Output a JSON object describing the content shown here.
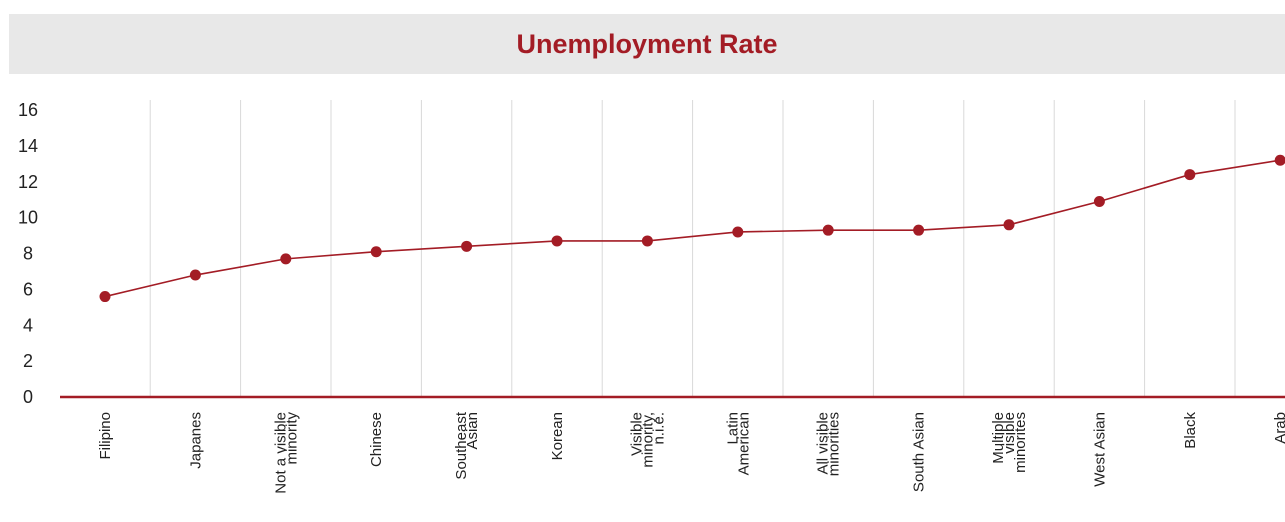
{
  "chart_data": {
    "type": "line",
    "title": "Unemployment Rate",
    "xlabel": "",
    "ylabel": "",
    "ylim": [
      0,
      16
    ],
    "yticks": [
      0,
      2,
      4,
      6,
      8,
      10,
      12,
      14,
      16
    ],
    "grid": "vertical",
    "categories": [
      "Filipino",
      "Japanes",
      "Not a visible minority",
      "Chinese",
      "Southeast Asian",
      "Korean",
      "Visible minority, n.i.e.",
      "Latin American",
      "All visible minorities",
      "South Asian",
      "Multiple visible minorites",
      "West Asian",
      "Black",
      "Arab"
    ],
    "category_lines": [
      [
        "Filipino"
      ],
      [
        "Japanes"
      ],
      [
        "Not a visible",
        "minority"
      ],
      [
        "Chinese"
      ],
      [
        "Southeast",
        "Asian"
      ],
      [
        "Korean"
      ],
      [
        "Visible",
        "minority,",
        "n.i.e."
      ],
      [
        "Latin",
        "American"
      ],
      [
        "All visible",
        "minorities"
      ],
      [
        "South Asian"
      ],
      [
        "Multiple",
        "visible",
        "minorites"
      ],
      [
        "West Asian"
      ],
      [
        "Black"
      ],
      [
        "Arab"
      ]
    ],
    "series": [
      {
        "values": [
          5.6,
          6.8,
          7.7,
          8.1,
          8.4,
          8.7,
          8.7,
          9.2,
          9.3,
          9.3,
          9.6,
          10.9,
          12.4,
          13.2
        ]
      }
    ],
    "colors": {
      "line": "#a31c25",
      "axis": "#a31c25",
      "grid": "#d9d9d9",
      "title_band": "#e8e8e8",
      "title_text": "#a31c25"
    }
  }
}
